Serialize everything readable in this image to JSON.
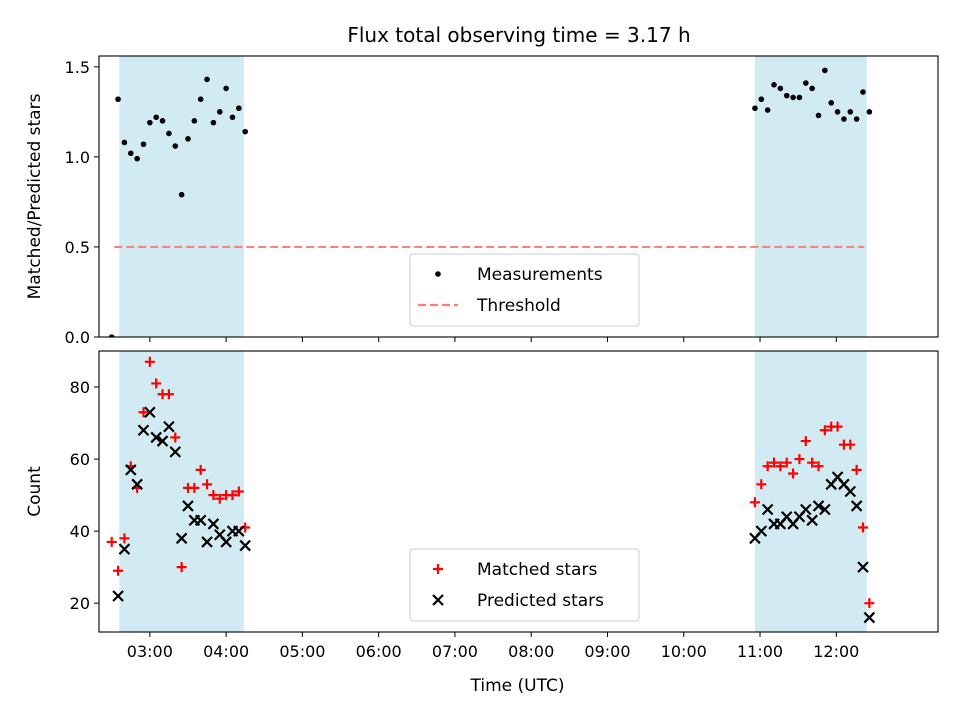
{
  "figure": {
    "title": "Flux total observing time = 3.17 h"
  },
  "colors": {
    "shade": "#add8e6",
    "measurement": "#000000",
    "threshold": "#ff7f7f",
    "matched": "#ff0000",
    "predicted": "#000000"
  },
  "chart_data": [
    {
      "type": "scatter",
      "title": "Flux total observing time = 3.17 h",
      "xlabel": "",
      "ylabel": "Matched/Predicted stars",
      "xlim": [
        "02:20",
        "13:20"
      ],
      "ylim": [
        0,
        1.56
      ],
      "yticks": [
        0.0,
        0.5,
        1.0,
        1.5
      ],
      "ytick_labels": [
        "0.0",
        "0.5",
        "1.0",
        "1.5"
      ],
      "xticks": [
        "03:00",
        "04:00",
        "05:00",
        "06:00",
        "07:00",
        "08:00",
        "09:00",
        "10:00",
        "11:00",
        "12:00"
      ],
      "shaded_spans": [
        [
          "02:36",
          "04:14"
        ],
        [
          "10:56",
          "12:24"
        ]
      ],
      "threshold": {
        "name": "Threshold",
        "y": 0.5,
        "x": [
          "02:32",
          "12:22"
        ]
      },
      "series": [
        {
          "name": "Measurements",
          "x": [
            "02:30",
            "02:35",
            "02:40",
            "02:45",
            "02:50",
            "02:55",
            "03:00",
            "03:05",
            "03:10",
            "03:15",
            "03:20",
            "03:25",
            "03:30",
            "03:35",
            "03:40",
            "03:45",
            "03:50",
            "03:55",
            "04:00",
            "04:05",
            "04:10",
            "04:15",
            "10:56",
            "11:01",
            "11:06",
            "11:11",
            "11:16",
            "11:21",
            "11:26",
            "11:31",
            "11:36",
            "11:41",
            "11:46",
            "11:51",
            "11:56",
            "12:01",
            "12:06",
            "12:11",
            "12:16",
            "12:21",
            "12:26"
          ],
          "y": [
            0.0,
            1.32,
            1.08,
            1.02,
            0.99,
            1.07,
            1.19,
            1.22,
            1.2,
            1.13,
            1.06,
            0.79,
            1.1,
            1.2,
            1.32,
            1.43,
            1.19,
            1.25,
            1.38,
            1.22,
            1.27,
            1.14,
            1.27,
            1.32,
            1.26,
            1.4,
            1.38,
            1.34,
            1.33,
            1.33,
            1.41,
            1.38,
            1.23,
            1.48,
            1.3,
            1.25,
            1.21,
            1.25,
            1.21,
            1.36,
            1.25
          ]
        }
      ],
      "legend": {
        "placement": "lower center",
        "entries": [
          "Measurements",
          "Threshold"
        ]
      }
    },
    {
      "type": "scatter",
      "xlabel": "Time (UTC)",
      "ylabel": "Count",
      "xlim": [
        "02:20",
        "13:20"
      ],
      "ylim": [
        12,
        90
      ],
      "yticks": [
        20,
        40,
        60,
        80
      ],
      "ytick_labels": [
        "20",
        "40",
        "60",
        "80"
      ],
      "xticks": [
        "03:00",
        "04:00",
        "05:00",
        "06:00",
        "07:00",
        "08:00",
        "09:00",
        "10:00",
        "11:00",
        "12:00"
      ],
      "xtick_labels": [
        "03:00",
        "04:00",
        "05:00",
        "06:00",
        "07:00",
        "08:00",
        "09:00",
        "10:00",
        "11:00",
        "12:00"
      ],
      "shaded_spans": [
        [
          "02:36",
          "04:14"
        ],
        [
          "10:56",
          "12:24"
        ]
      ],
      "series": [
        {
          "name": "Matched stars",
          "x": [
            "02:30",
            "02:35",
            "02:40",
            "02:45",
            "02:50",
            "02:55",
            "03:00",
            "03:05",
            "03:10",
            "03:15",
            "03:20",
            "03:25",
            "03:30",
            "03:35",
            "03:40",
            "03:45",
            "03:50",
            "03:55",
            "04:00",
            "04:05",
            "04:10",
            "04:15",
            "10:56",
            "11:01",
            "11:06",
            "11:11",
            "11:16",
            "11:21",
            "11:26",
            "11:31",
            "11:36",
            "11:41",
            "11:46",
            "11:51",
            "11:56",
            "12:01",
            "12:06",
            "12:11",
            "12:16",
            "12:21",
            "12:26"
          ],
          "y": [
            37,
            29,
            38,
            58,
            52,
            73,
            87,
            81,
            78,
            78,
            66,
            30,
            52,
            52,
            57,
            53,
            50,
            49,
            50,
            50,
            51,
            41,
            48,
            53,
            58,
            59,
            58,
            59,
            56,
            60,
            65,
            59,
            58,
            68,
            69,
            69,
            64,
            64,
            57,
            41,
            20
          ]
        },
        {
          "name": "Predicted stars",
          "x": [
            "02:30",
            "02:35",
            "02:40",
            "02:45",
            "02:50",
            "02:55",
            "03:00",
            "03:05",
            "03:10",
            "03:15",
            "03:20",
            "03:25",
            "03:30",
            "03:35",
            "03:40",
            "03:45",
            "03:50",
            "03:55",
            "04:00",
            "04:05",
            "04:10",
            "04:15",
            "10:56",
            "11:01",
            "11:06",
            "11:11",
            "11:16",
            "11:21",
            "11:26",
            "11:31",
            "11:36",
            "11:41",
            "11:46",
            "11:51",
            "11:56",
            "12:01",
            "12:06",
            "12:11",
            "12:16",
            "12:21",
            "12:26"
          ],
          "y": [
            null,
            22,
            35,
            57,
            53,
            68,
            73,
            66,
            65,
            69,
            62,
            38,
            47,
            43,
            43,
            37,
            42,
            39,
            37,
            40,
            40,
            36,
            38,
            40,
            46,
            42,
            42,
            44,
            42,
            44,
            46,
            43,
            47,
            46,
            53,
            55,
            53,
            51,
            47,
            30,
            16
          ]
        }
      ],
      "legend": {
        "placement": "lower center",
        "entries": [
          "Matched stars",
          "Predicted stars"
        ]
      }
    }
  ]
}
